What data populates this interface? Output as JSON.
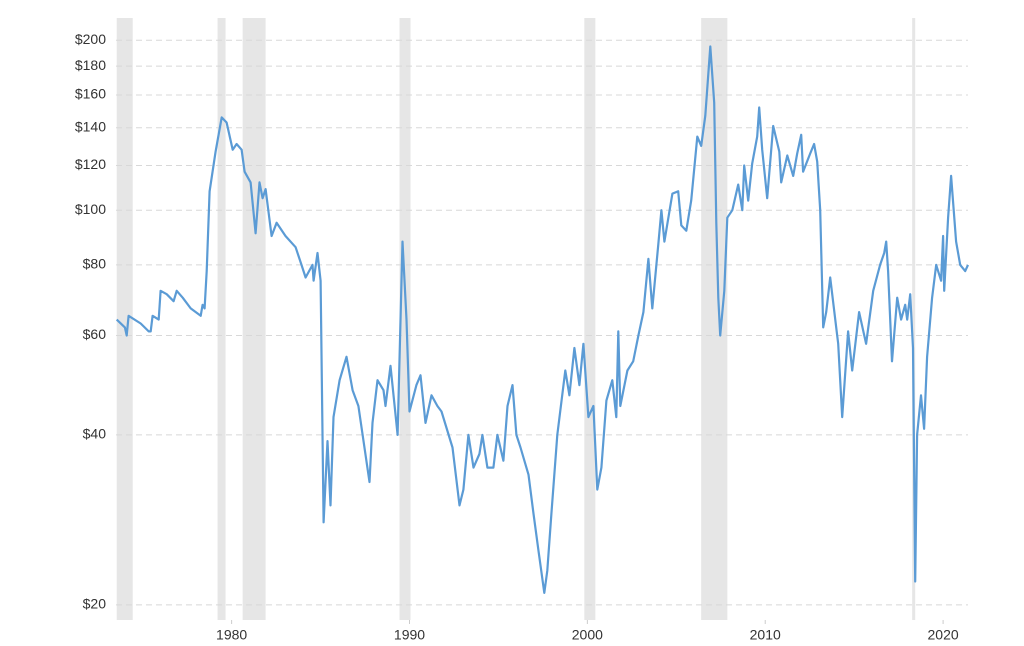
{
  "chart_data": {
    "type": "line",
    "log_scale": true,
    "grid": true,
    "xlim": [
      1973.5,
      2021.4
    ],
    "xticks": [
      1980,
      1990,
      2000,
      2010,
      2020
    ],
    "ylim": [
      18.8,
      219
    ],
    "yticks": [
      {
        "value": 20,
        "label": "$20"
      },
      {
        "value": 40,
        "label": "$40"
      },
      {
        "value": 60,
        "label": "$60"
      },
      {
        "value": 80,
        "label": "$80"
      },
      {
        "value": 100,
        "label": "$100"
      },
      {
        "value": 120,
        "label": "$120"
      },
      {
        "value": 140,
        "label": "$140"
      },
      {
        "value": 160,
        "label": "$160"
      },
      {
        "value": 180,
        "label": "$180"
      },
      {
        "value": 200,
        "label": "$200"
      }
    ],
    "recessions": [
      [
        1973.54,
        1974.44
      ],
      [
        1979.21,
        1979.66
      ],
      [
        1980.62,
        1981.91
      ],
      [
        1989.44,
        1990.06
      ],
      [
        1999.83,
        2000.45
      ],
      [
        2006.4,
        2007.87
      ],
      [
        2018.26,
        2018.43
      ]
    ],
    "recession_color": "#e6e6e6",
    "x": [
      1973.54,
      1974.0,
      1974.1,
      1974.21,
      1974.89,
      1975.34,
      1975.45,
      1975.56,
      1975.9,
      1976.01,
      1976.35,
      1976.74,
      1976.91,
      1977.25,
      1977.7,
      1978.26,
      1978.37,
      1978.48,
      1978.6,
      1978.76,
      1979.1,
      1979.44,
      1979.72,
      1980.06,
      1980.28,
      1980.56,
      1980.73,
      1981.07,
      1981.35,
      1981.57,
      1981.74,
      1981.91,
      1982.25,
      1982.53,
      1983.03,
      1983.6,
      1983.93,
      1984.16,
      1984.55,
      1984.61,
      1984.83,
      1985.0,
      1985.17,
      1985.39,
      1985.56,
      1985.73,
      1986.07,
      1986.46,
      1986.8,
      1987.13,
      1987.75,
      1987.92,
      1988.2,
      1988.54,
      1988.65,
      1988.93,
      1989.33,
      1989.61,
      1989.83,
      1990.0,
      1990.39,
      1990.62,
      1990.9,
      1991.24,
      1991.57,
      1991.8,
      1992.42,
      1992.81,
      1993.03,
      1993.31,
      1993.6,
      1993.93,
      1994.1,
      1994.38,
      1994.72,
      1994.94,
      1995.28,
      1995.51,
      1995.79,
      1996.01,
      1996.24,
      1996.69,
      1996.97,
      1997.25,
      1997.58,
      1997.75,
      1997.98,
      1998.31,
      1998.76,
      1998.99,
      1999.27,
      1999.55,
      1999.78,
      2000.06,
      2000.34,
      2000.56,
      2000.79,
      2001.07,
      2001.4,
      2001.63,
      2001.74,
      2001.85,
      2002.25,
      2002.58,
      2002.87,
      2003.15,
      2003.43,
      2003.65,
      2003.99,
      2004.16,
      2004.33,
      2004.78,
      2005.11,
      2005.28,
      2005.56,
      2005.84,
      2006.18,
      2006.4,
      2006.63,
      2006.91,
      2007.13,
      2007.25,
      2007.36,
      2007.47,
      2007.7,
      2007.87,
      2008.15,
      2008.48,
      2008.71,
      2008.82,
      2009.04,
      2009.27,
      2009.55,
      2009.66,
      2009.83,
      2010.11,
      2010.45,
      2010.79,
      2010.9,
      2011.24,
      2011.57,
      2011.8,
      2012.02,
      2012.13,
      2012.53,
      2012.75,
      2012.92,
      2013.09,
      2013.26,
      2013.43,
      2013.65,
      2013.99,
      2014.1,
      2014.33,
      2014.66,
      2014.89,
      2015.28,
      2015.67,
      2016.07,
      2016.46,
      2016.69,
      2016.8,
      2016.91,
      2017.13,
      2017.42,
      2017.64,
      2017.87,
      2017.98,
      2018.15,
      2018.31,
      2018.43,
      2018.54,
      2018.76,
      2018.93,
      2019.1,
      2019.38,
      2019.61,
      2019.89,
      2020.0,
      2020.06,
      2020.28,
      2020.45,
      2020.73,
      2020.96,
      2021.24,
      2021.4
    ],
    "series": [
      {
        "color": "#5b9bd5",
        "values": [
          64,
          62,
          60,
          65,
          63,
          61,
          61,
          65,
          64,
          72,
          71,
          69,
          72,
          70,
          67,
          65,
          68,
          67,
          78,
          108,
          127,
          146,
          143,
          128,
          131,
          128,
          117,
          112,
          91,
          112,
          105,
          109,
          90,
          95,
          90,
          86,
          80,
          76,
          80,
          75,
          84,
          75,
          28,
          39,
          30,
          43,
          50,
          55,
          48,
          45,
          33,
          42,
          50,
          48,
          45,
          53,
          40,
          88,
          64,
          44,
          49,
          51,
          42,
          47,
          45,
          44,
          38,
          30,
          32,
          40,
          35,
          37,
          40,
          35,
          35,
          40,
          36,
          45,
          49,
          40,
          38,
          34,
          29,
          25,
          21,
          23,
          29,
          40,
          52,
          47,
          57,
          49,
          58,
          43,
          45,
          32,
          35,
          46,
          50,
          43,
          61,
          45,
          52,
          54,
          60,
          66,
          82,
          67,
          87,
          100,
          88,
          107,
          108,
          94,
          92,
          104,
          135,
          130,
          147,
          195,
          155,
          95,
          70,
          60,
          72,
          97,
          100,
          111,
          100,
          120,
          104,
          121,
          135,
          152,
          128,
          105,
          141,
          127,
          112,
          125,
          115,
          126,
          136,
          117,
          126,
          131,
          122,
          100,
          62,
          66,
          76,
          62,
          58,
          43,
          61,
          52,
          66,
          58,
          72,
          80,
          84,
          88,
          78,
          54,
          70,
          64,
          68,
          64,
          71,
          57,
          22,
          40,
          47,
          41,
          55,
          70,
          80,
          75,
          90,
          72,
          97,
          115,
          88,
          80,
          78,
          80
        ]
      }
    ]
  }
}
